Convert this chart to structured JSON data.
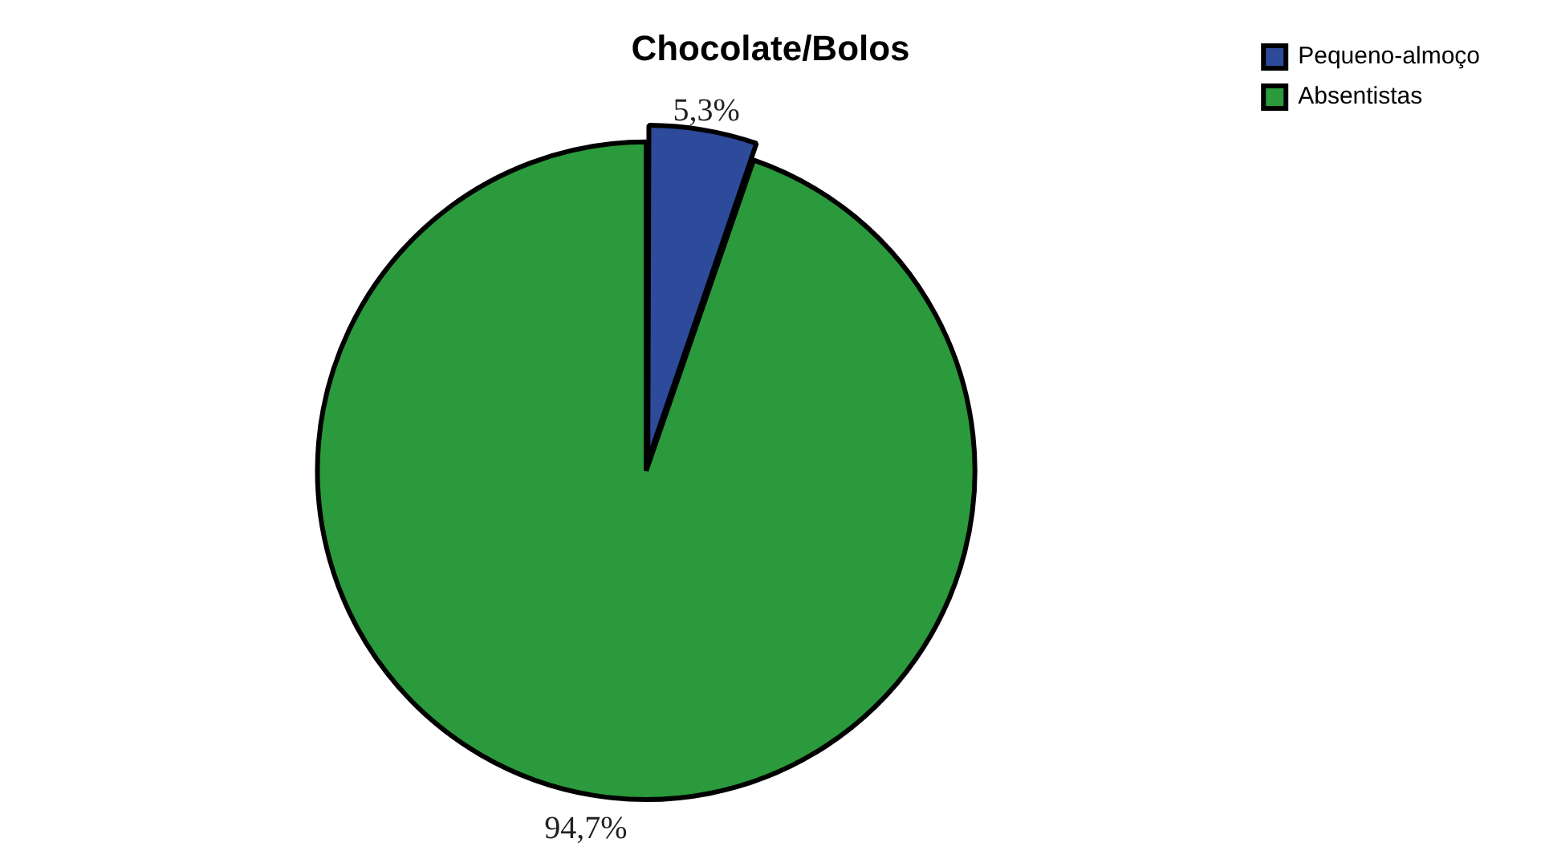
{
  "chart_data": {
    "type": "pie",
    "title": "Chocolate/Bolos",
    "categories": [
      "Pequeno-almoço",
      "Absentistas"
    ],
    "values": [
      5.3,
      94.7
    ],
    "value_labels": [
      "5,3%",
      "94,7%"
    ],
    "colors": [
      "#2e4a9a",
      "#2a9a3c"
    ],
    "legend": "top right"
  }
}
